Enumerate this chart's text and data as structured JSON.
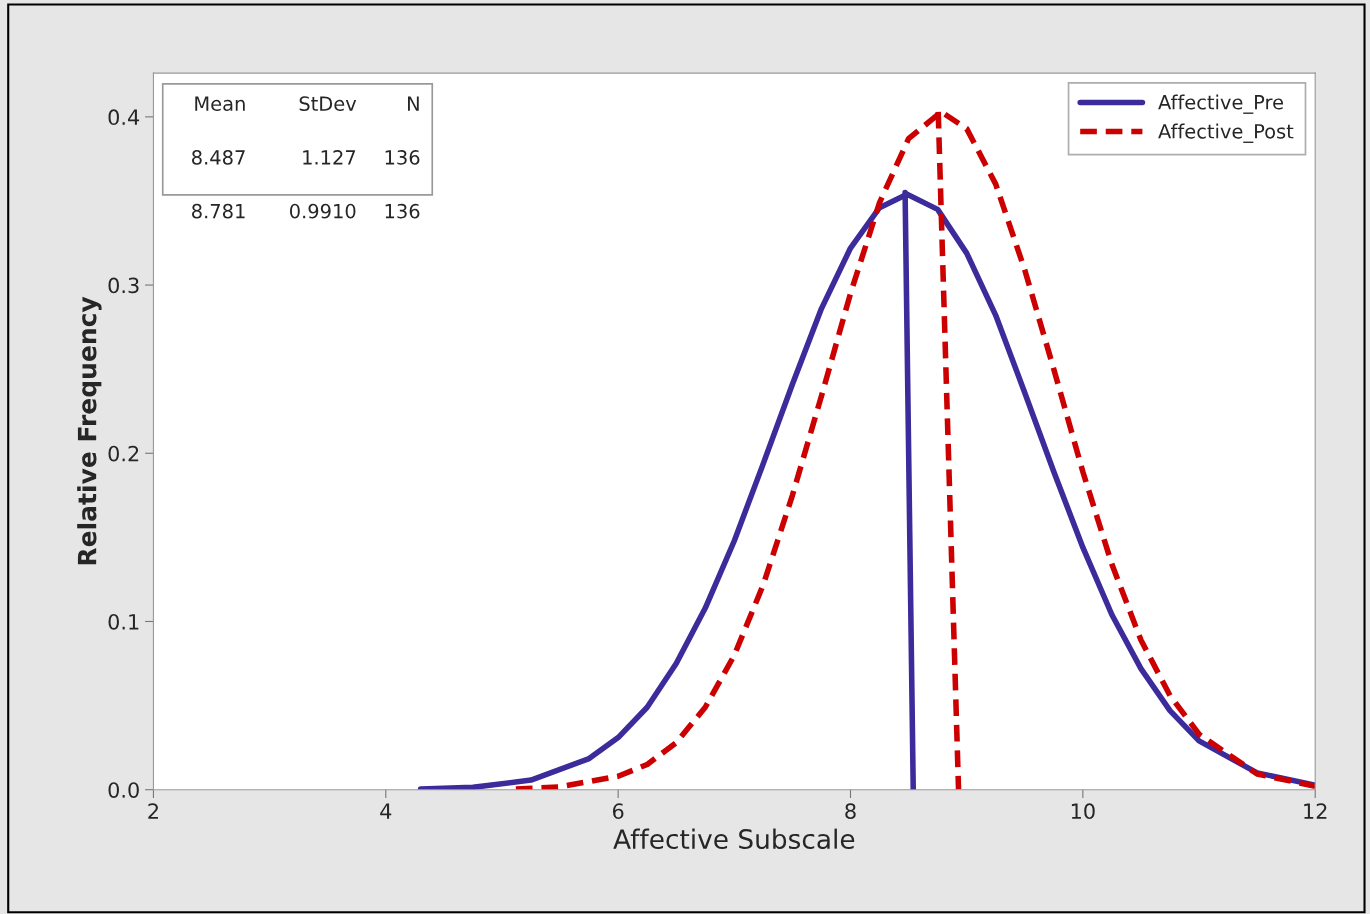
{
  "chart_data": {
    "type": "line",
    "xlabel": "Affective Subscale",
    "ylabel": "Relative Frequency",
    "series": [
      {
        "name": "Affective_Pre",
        "color": "#3b2b9b",
        "line_style": "solid",
        "x": [
          4.3,
          4.75,
          5.25,
          5.75,
          6.0,
          6.25,
          6.5,
          6.75,
          7.0,
          7.25,
          7.5,
          7.75,
          8.0,
          8.25,
          8.487,
          8.75,
          9.0,
          9.25,
          9.5,
          9.75,
          10.0,
          10.25,
          10.5,
          10.75,
          11.0,
          11.5,
          12
        ],
        "values": [
          0.0004,
          0.0014,
          0.0057,
          0.0185,
          0.031,
          0.049,
          0.075,
          0.108,
          0.148,
          0.194,
          0.241,
          0.286,
          0.322,
          0.346,
          0.354,
          0.345,
          0.319,
          0.282,
          0.236,
          0.189,
          0.144,
          0.104,
          0.072,
          0.047,
          0.029,
          0.01,
          0.0027
        ]
      },
      {
        "name": "Affective_Post",
        "color": "#cc0000",
        "line_style": "dashed",
        "x": [
          5.12,
          5.5,
          6.0,
          6.25,
          6.5,
          6.75,
          7.0,
          7.25,
          7.5,
          7.75,
          8.0,
          8.25,
          8.5,
          8.781,
          9.0,
          9.25,
          9.5,
          9.75,
          10.0,
          10.25,
          10.5,
          10.75,
          11.0,
          11.5,
          12
        ],
        "values": [
          0.0004,
          0.0017,
          0.008,
          0.015,
          0.028,
          0.049,
          0.08,
          0.122,
          0.175,
          0.234,
          0.295,
          0.349,
          0.387,
          0.403,
          0.393,
          0.36,
          0.309,
          0.25,
          0.189,
          0.134,
          0.089,
          0.056,
          0.033,
          0.0093,
          0.0021
        ]
      },
      {
        "color": "#3b2b9b",
        "line_style": "solid",
        "x": [
          8.47,
          8.54
        ],
        "values": [
          0.355,
          0
        ]
      },
      {
        "color": "#cc0000",
        "line_style": "dashed",
        "x": [
          8.755,
          8.93
        ],
        "values": [
          0.403,
          0
        ]
      }
    ],
    "xlim": [
      2,
      12
    ],
    "xticks": [
      2,
      4,
      6,
      8,
      10,
      12
    ],
    "ylim": [
      0,
      0.426
    ],
    "yticks": [
      {
        "value": 0,
        "label": "0.0"
      },
      0.1,
      0.2,
      0.3,
      0.4
    ],
    "grid": false,
    "legend": "top right",
    "annotations": [
      "Mean",
      "StDev",
      "N",
      "8.487",
      "1.127",
      "136",
      "8.781",
      "0.9910",
      "136"
    ]
  }
}
